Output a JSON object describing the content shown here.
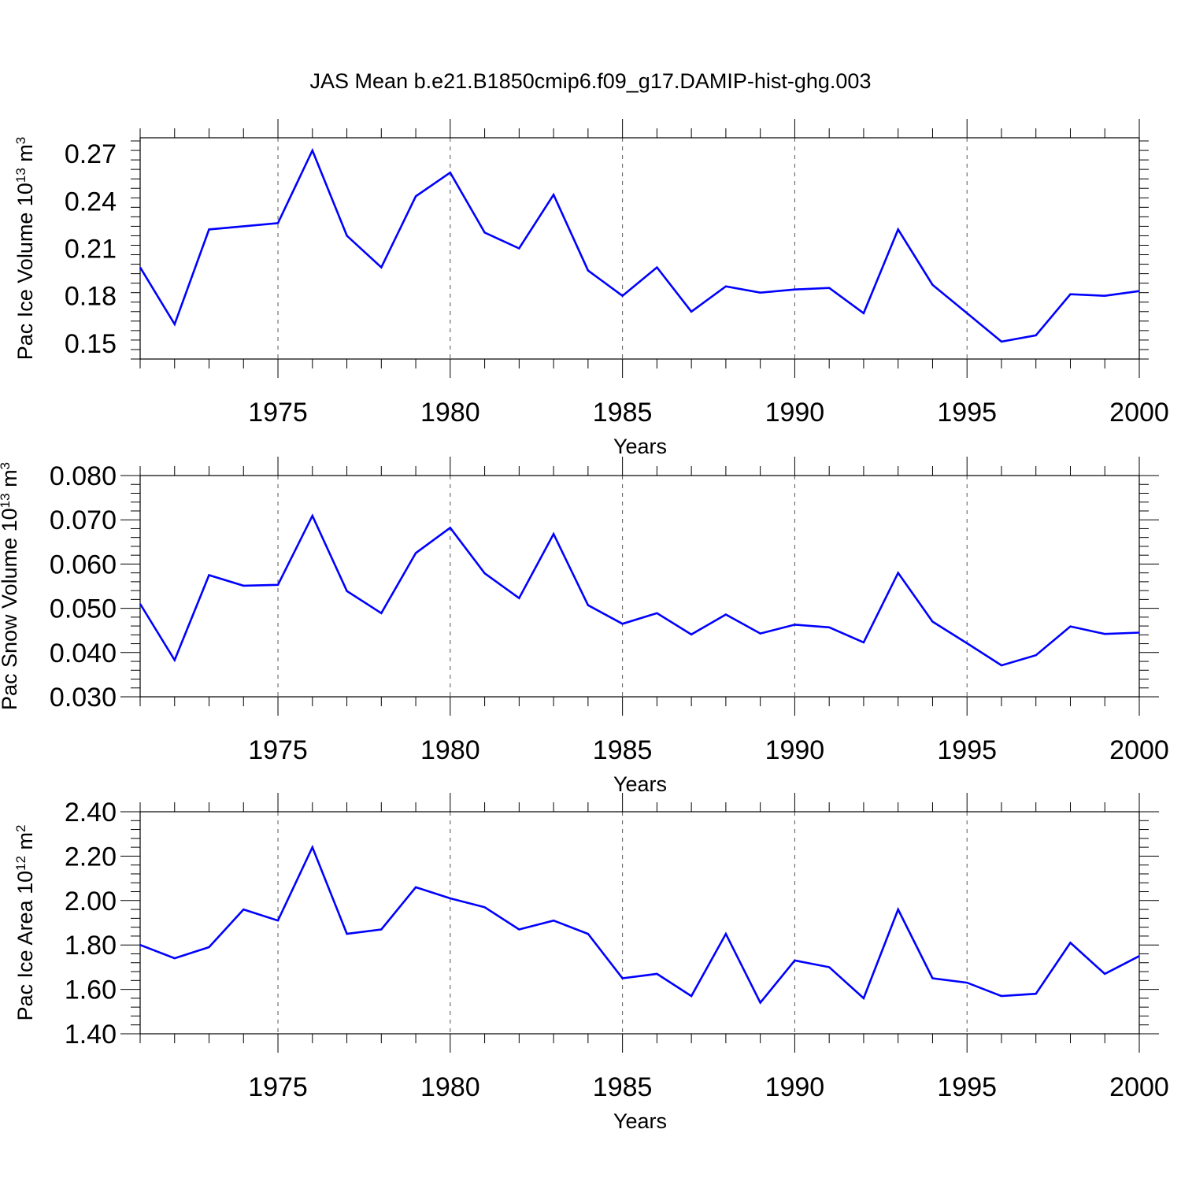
{
  "chart_data": [
    {
      "type": "line",
      "title": "JAS Mean b.e21.B1850cmip6.f09_g17.DAMIP-hist-ghg.003",
      "ylabel": {
        "base": "Pac Ice Volume 10",
        "exp": "13",
        "unit": " m",
        "unit_exp": "3"
      },
      "xlabel": "Years",
      "xlim": [
        1971,
        2000
      ],
      "ylim": [
        0.14,
        0.28
      ],
      "xticks": [
        "1975",
        "1980",
        "1985",
        "1990",
        "1995",
        "2000"
      ],
      "yticks": [
        "0.15",
        "0.18",
        "0.21",
        "0.24",
        "0.27"
      ],
      "grid": "dashed vertical at major x ticks",
      "line_color": "#0000ff",
      "x": [
        1971,
        1972,
        1973,
        1974,
        1975,
        1976,
        1977,
        1978,
        1979,
        1980,
        1981,
        1982,
        1983,
        1984,
        1985,
        1986,
        1987,
        1988,
        1989,
        1990,
        1991,
        1992,
        1993,
        1994,
        1995,
        1996,
        1997,
        1998,
        1999,
        2000
      ],
      "values": [
        0.198,
        0.162,
        0.222,
        0.224,
        0.226,
        0.272,
        0.218,
        0.198,
        0.243,
        0.258,
        0.22,
        0.21,
        0.244,
        0.196,
        0.18,
        0.198,
        0.17,
        0.186,
        0.182,
        0.184,
        0.185,
        0.169,
        0.222,
        0.187,
        0.169,
        0.151,
        0.155,
        0.181,
        0.18,
        0.183
      ]
    },
    {
      "type": "line",
      "ylabel": {
        "base": "Pac Snow Volume 10",
        "exp": "13",
        "unit": " m",
        "unit_exp": "3"
      },
      "xlabel": "Years",
      "xlim": [
        1971,
        2000
      ],
      "ylim": [
        0.03,
        0.08
      ],
      "xticks": [
        "1975",
        "1980",
        "1985",
        "1990",
        "1995",
        "2000"
      ],
      "yticks": [
        "0.030",
        "0.040",
        "0.050",
        "0.060",
        "0.070",
        "0.080"
      ],
      "grid": "dashed vertical at major x ticks",
      "line_color": "#0000ff",
      "x": [
        1971,
        1972,
        1973,
        1974,
        1975,
        1976,
        1977,
        1978,
        1979,
        1980,
        1981,
        1982,
        1983,
        1984,
        1985,
        1986,
        1987,
        1988,
        1989,
        1990,
        1991,
        1992,
        1993,
        1994,
        1995,
        1996,
        1997,
        1998,
        1999,
        2000
      ],
      "values": [
        0.051,
        0.0383,
        0.0575,
        0.0551,
        0.0553,
        0.0709,
        0.0539,
        0.0489,
        0.0625,
        0.0682,
        0.0579,
        0.0523,
        0.0668,
        0.0507,
        0.0465,
        0.0489,
        0.0441,
        0.0486,
        0.0443,
        0.0463,
        0.0457,
        0.0423,
        0.058,
        0.047,
        0.0421,
        0.0371,
        0.0394,
        0.0459,
        0.0442,
        0.0445
      ]
    },
    {
      "type": "line",
      "ylabel": {
        "base": "Pac Ice Area 10",
        "exp": "12",
        "unit": " m",
        "unit_exp": "2"
      },
      "xlabel": "Years",
      "xlim": [
        1971,
        2000
      ],
      "ylim": [
        1.4,
        2.4
      ],
      "xticks": [
        "1975",
        "1980",
        "1985",
        "1990",
        "1995",
        "2000"
      ],
      "yticks": [
        "1.40",
        "1.60",
        "1.80",
        "2.00",
        "2.20",
        "2.40"
      ],
      "grid": "dashed vertical at major x ticks",
      "line_color": "#0000ff",
      "x": [
        1971,
        1972,
        1973,
        1974,
        1975,
        1976,
        1977,
        1978,
        1979,
        1980,
        1981,
        1982,
        1983,
        1984,
        1985,
        1986,
        1987,
        1988,
        1989,
        1990,
        1991,
        1992,
        1993,
        1994,
        1995,
        1996,
        1997,
        1998,
        1999,
        2000
      ],
      "values": [
        1.8,
        1.74,
        1.79,
        1.96,
        1.91,
        2.24,
        1.85,
        1.87,
        2.06,
        2.01,
        1.97,
        1.87,
        1.91,
        1.85,
        1.65,
        1.67,
        1.57,
        1.85,
        1.54,
        1.73,
        1.7,
        1.56,
        1.96,
        1.65,
        1.63,
        1.57,
        1.58,
        1.81,
        1.67,
        1.75
      ]
    }
  ]
}
